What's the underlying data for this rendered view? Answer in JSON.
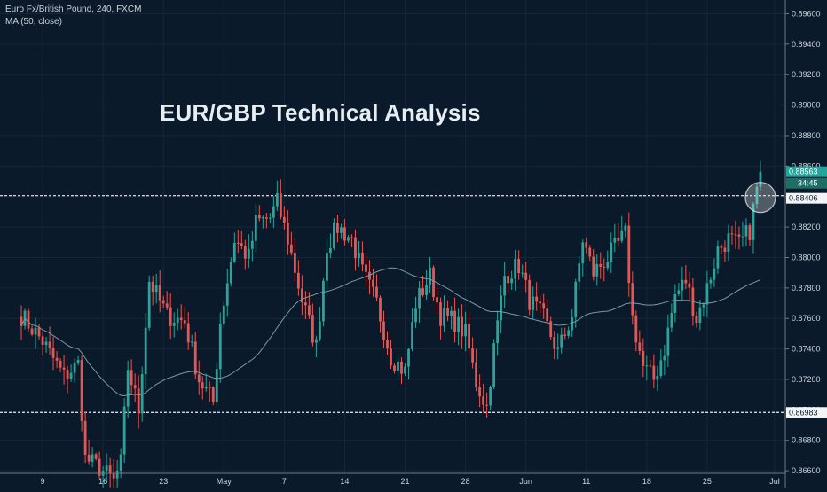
{
  "header": {
    "symbol_line": "Euro Fx/British Pound, 240, FXCM",
    "indicator_line": "MA (50, close)"
  },
  "chart_data": {
    "type": "candlestick",
    "title": "EUR/GBP Technical Analysis",
    "y_ticks": [
      "0.89600",
      "0.89400",
      "0.89200",
      "0.89000",
      "0.88800",
      "0.88600",
      "0.88400",
      "0.88200",
      "0.88000",
      "0.87800",
      "0.87600",
      "0.87400",
      "0.87200",
      "0.87000",
      "0.86800",
      "0.86600"
    ],
    "y_tick_values": [
      0.896,
      0.894,
      0.892,
      0.89,
      0.888,
      0.886,
      0.884,
      0.882,
      0.88,
      0.878,
      0.876,
      0.874,
      0.872,
      0.87,
      0.868,
      0.866
    ],
    "ylim": [
      0.8649,
      0.8969
    ],
    "x_ticks": [
      "9",
      "16",
      "23",
      "May",
      "7",
      "14",
      "21",
      "28",
      "Jun",
      "11",
      "18",
      "25",
      "Jul"
    ],
    "x_tick_index": [
      6,
      23,
      40,
      57,
      74,
      91,
      108,
      125,
      142,
      159,
      176,
      193,
      212
    ],
    "xlim": [
      -6,
      215
    ],
    "resistance": {
      "value": 0.88406,
      "label": "0.88406"
    },
    "support": {
      "value": 0.86983,
      "label": "0.86983"
    },
    "last_price": {
      "value": 0.88563,
      "label": "0.88563",
      "countdown": "34:45"
    },
    "colors": {
      "up": "#26a69a",
      "down": "#ef5350",
      "ma": "#7a9aa6",
      "grid": "#14263a",
      "background": "#0b1a2a",
      "last_price_bg": "#26a69a"
    },
    "ma_label": "MA (50, close)",
    "key_points": [
      [
        0,
        0.8762
      ],
      [
        6,
        0.8745
      ],
      [
        12,
        0.8722
      ],
      [
        16,
        0.873
      ],
      [
        18,
        0.8668
      ],
      [
        22,
        0.8662
      ],
      [
        26,
        0.8653
      ],
      [
        28,
        0.8665
      ],
      [
        30,
        0.8728
      ],
      [
        33,
        0.87
      ],
      [
        36,
        0.8785
      ],
      [
        41,
        0.8762
      ],
      [
        46,
        0.8758
      ],
      [
        50,
        0.872
      ],
      [
        54,
        0.8705
      ],
      [
        56,
        0.8758
      ],
      [
        60,
        0.8812
      ],
      [
        64,
        0.88
      ],
      [
        66,
        0.8823
      ],
      [
        70,
        0.8826
      ],
      [
        72,
        0.8836
      ],
      [
        75,
        0.8812
      ],
      [
        79,
        0.8772
      ],
      [
        83,
        0.8742
      ],
      [
        86,
        0.8808
      ],
      [
        89,
        0.882
      ],
      [
        93,
        0.8812
      ],
      [
        96,
        0.879
      ],
      [
        100,
        0.877
      ],
      [
        104,
        0.8735
      ],
      [
        108,
        0.8725
      ],
      [
        111,
        0.877
      ],
      [
        115,
        0.8788
      ],
      [
        118,
        0.8762
      ],
      [
        122,
        0.8758
      ],
      [
        125,
        0.875
      ],
      [
        128,
        0.8718
      ],
      [
        131,
        0.8702
      ],
      [
        133,
        0.874
      ],
      [
        136,
        0.8788
      ],
      [
        140,
        0.8795
      ],
      [
        143,
        0.8772
      ],
      [
        147,
        0.876
      ],
      [
        151,
        0.8738
      ],
      [
        155,
        0.8762
      ],
      [
        158,
        0.8812
      ],
      [
        161,
        0.879
      ],
      [
        165,
        0.88
      ],
      [
        170,
        0.8815
      ],
      [
        172,
        0.876
      ],
      [
        175,
        0.8728
      ],
      [
        178,
        0.872
      ],
      [
        181,
        0.874
      ],
      [
        184,
        0.8775
      ],
      [
        187,
        0.8785
      ],
      [
        190,
        0.876
      ],
      [
        193,
        0.878
      ],
      [
        196,
        0.8805
      ],
      [
        199,
        0.8812
      ],
      [
        202,
        0.8808
      ],
      [
        205,
        0.8818
      ],
      [
        207,
        0.8845
      ]
    ]
  }
}
